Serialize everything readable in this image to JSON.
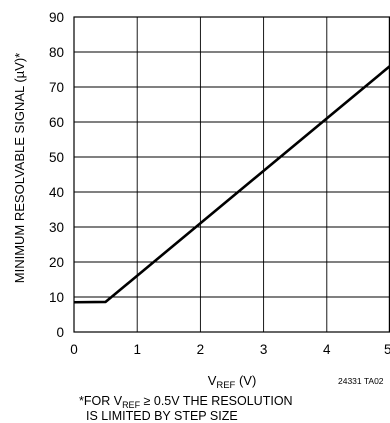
{
  "chart_data": {
    "type": "line",
    "xlabel_main": "V",
    "xlabel_sub": "REF",
    "xlabel_unit": " (V)",
    "ylabel": "MINIMUM RESOLVABLE SIGNAL (µV)*",
    "xlim": [
      0,
      5
    ],
    "ylim": [
      0,
      90
    ],
    "x_ticks": [
      "0",
      "1",
      "2",
      "3",
      "4",
      "5"
    ],
    "y_ticks": [
      "0",
      "10",
      "20",
      "30",
      "40",
      "50",
      "60",
      "70",
      "80",
      "90"
    ],
    "grid": true,
    "series": [
      {
        "x": [
          0.0,
          0.5,
          5.0
        ],
        "y": [
          8.5,
          8.6,
          76.0
        ]
      }
    ],
    "figure_id": "24331 TA02",
    "footnote": {
      "line1_prefix": "*FOR V",
      "line1_sub": "REF",
      "line1_suffix": " ≥ 0.5V THE RESOLUTION",
      "line2": "IS LIMITED BY STEP SIZE"
    },
    "line_color": "#000000"
  }
}
